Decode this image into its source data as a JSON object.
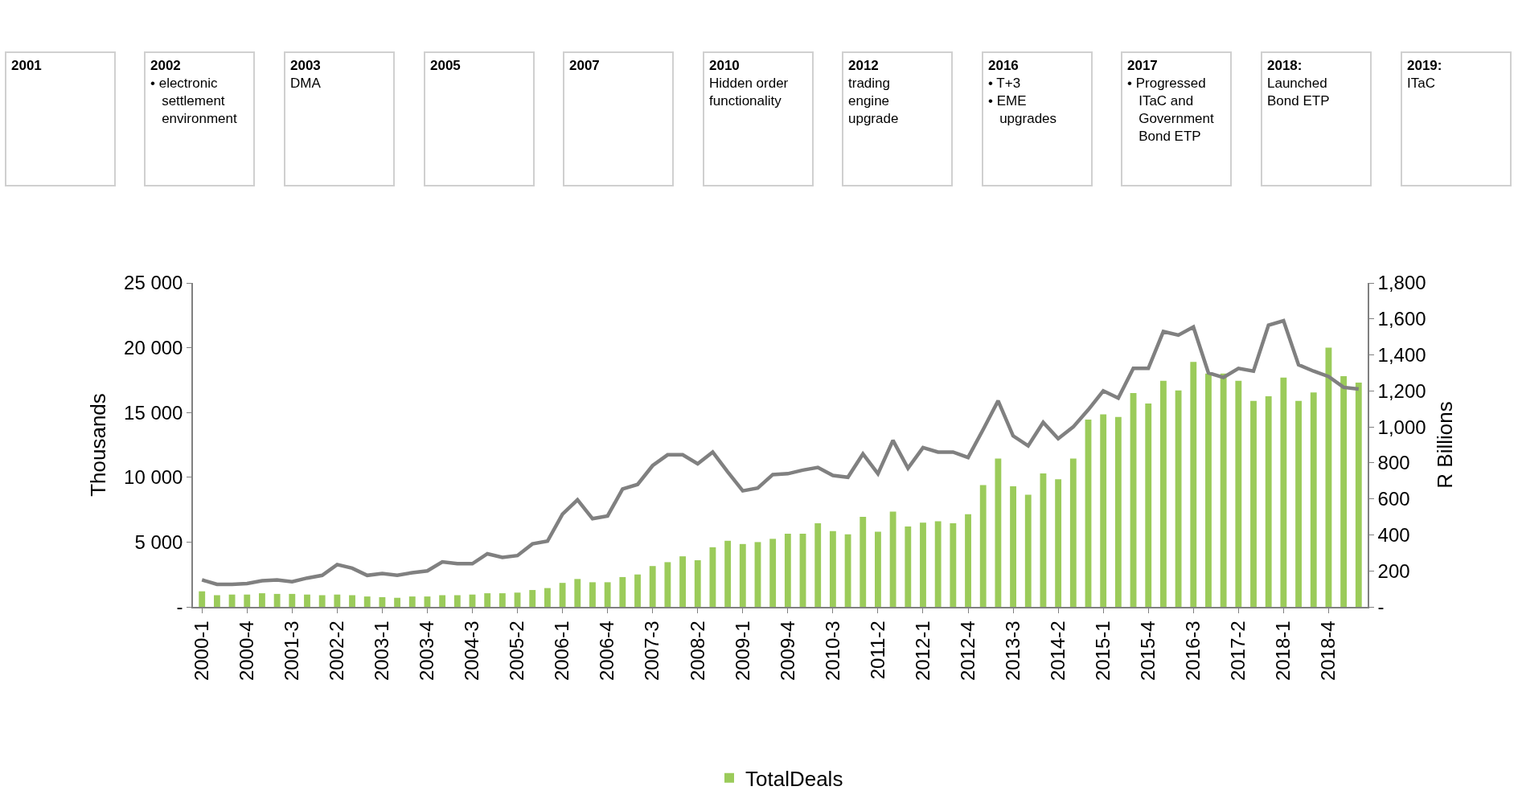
{
  "chart_data": {
    "type": "bar",
    "xlabel": null,
    "ylabel": "Thousands",
    "y2label": "R Billions",
    "categories": [
      "2000-1",
      null,
      null,
      "2000-4",
      null,
      null,
      "2001-3",
      null,
      null,
      "2002-2",
      null,
      null,
      "2003-1",
      null,
      null,
      "2003-4",
      null,
      null,
      "2004-3",
      null,
      null,
      "2005-2",
      null,
      null,
      "2006-1",
      null,
      null,
      "2006-4",
      null,
      null,
      "2007-3",
      null,
      null,
      "2008-2",
      null,
      null,
      "2009-1",
      null,
      null,
      "2009-4",
      null,
      null,
      "2010-3",
      null,
      null,
      "2011-2",
      null,
      null,
      "2012-1",
      null,
      null,
      "2012-4",
      null,
      null,
      "2013-3",
      null,
      null,
      "2014-2",
      null,
      null,
      "2015-1",
      null,
      null,
      "2015-4",
      null,
      null,
      "2016-3",
      null,
      null,
      "2017-2",
      null,
      null,
      "2018-1",
      null,
      null,
      "2018-4",
      null,
      null
    ],
    "series": [
      {
        "name": "TotalDeals",
        "type": "bar",
        "color": "#9bcb5a",
        "values": [
          1200,
          900,
          950,
          950,
          1050,
          1000,
          1000,
          950,
          900,
          950,
          900,
          800,
          750,
          700,
          800,
          800,
          900,
          900,
          950,
          1050,
          1050,
          1100,
          1300,
          1450,
          1850,
          2150,
          1900,
          1900,
          2300,
          2500,
          3150,
          3450,
          3900,
          3600,
          4600,
          5100,
          4850,
          5000,
          5250,
          5650,
          5650,
          6450,
          5850,
          5600,
          6950,
          5800,
          7350,
          6200,
          6500,
          6600,
          6450,
          7150,
          9400,
          11450,
          9300,
          8650,
          10300,
          9850,
          11450,
          14450,
          14850,
          14650,
          16500,
          15700,
          17450,
          16700,
          18900,
          18000,
          18000,
          17450,
          15900,
          16250,
          17700,
          15900,
          16550,
          20000,
          17800,
          17300
        ]
      },
      {
        "type": "line",
        "axis": "y2",
        "color": "#808080",
        "values": [
          150,
          125,
          125,
          130,
          145,
          150,
          140,
          160,
          175,
          235,
          215,
          175,
          185,
          175,
          190,
          200,
          250,
          240,
          240,
          295,
          275,
          285,
          350,
          365,
          515,
          595,
          490,
          505,
          655,
          680,
          785,
          845,
          845,
          795,
          860,
          750,
          645,
          660,
          735,
          740,
          760,
          775,
          730,
          720,
          850,
          740,
          925,
          770,
          885,
          860,
          860,
          830,
          985,
          1145,
          950,
          895,
          1025,
          935,
          1000,
          1095,
          1200,
          1160,
          1325,
          1325,
          1530,
          1510,
          1555,
          1300,
          1275,
          1325,
          1310,
          1565,
          1590,
          1345,
          1310,
          1280,
          1220,
          1210
        ]
      }
    ],
    "ylim": [
      0,
      25000
    ],
    "yticks": [
      {
        "value": 0,
        "label": "-"
      },
      {
        "value": 5000,
        "label": "5 000"
      },
      {
        "value": 10000,
        "label": "10 000"
      },
      {
        "value": 15000,
        "label": "15 000"
      },
      {
        "value": 20000,
        "label": "20 000"
      },
      {
        "value": 25000,
        "label": "25 000"
      }
    ],
    "y2lim": [
      0,
      1800
    ],
    "y2ticks": [
      {
        "value": 0,
        "label": "-"
      },
      200,
      400,
      600,
      800,
      {
        "value": 1000,
        "label": "1,000"
      },
      {
        "value": 1200,
        "label": "1,200"
      },
      {
        "value": 1400,
        "label": "1,400"
      },
      {
        "value": 1600,
        "label": "1,600"
      },
      {
        "value": 1800,
        "label": "1,800"
      }
    ],
    "legend": "bottom",
    "annotations": [
      "2001",
      "2002\n• electronic\n   settlement\n   environment",
      "2003\nDMA",
      "2005",
      "2007",
      "2010\nHidden order\nfunctionality",
      "2012\ntrading\nengine\nupgrade",
      "2016\n• T+3\n• EME\n   upgrades",
      "2017\n• Progressed\n   ITaC and\n   Government\n   Bond ETP",
      "2018:\nLaunched\nBond ETP",
      "2019:\nITaC"
    ]
  }
}
